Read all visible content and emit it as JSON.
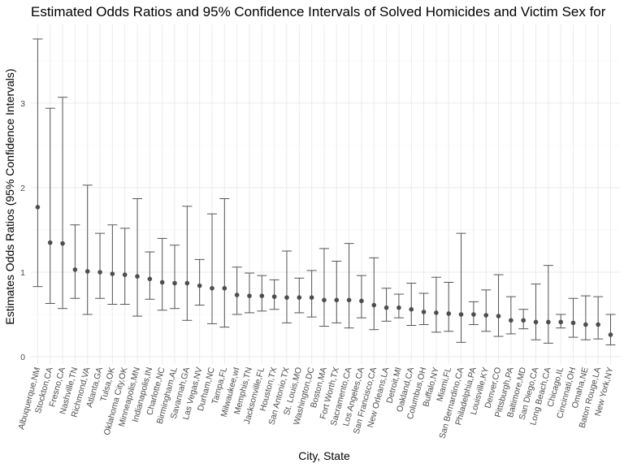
{
  "chart_data": {
    "type": "scatter",
    "title": "Estimated Odds Ratios and 95% Confidence Intervals of Solved Homicides and Victim Sex for",
    "xlabel": "City, State",
    "ylabel": "Estimates Odds Ratios (95% Confidence Intervals)",
    "ylim": [
      0,
      3.85
    ],
    "yticks": [
      "0",
      "1",
      "2",
      "3"
    ],
    "grid": true,
    "legend": "none",
    "point_color": "#4d4d4d",
    "errorbar_color": "#555555",
    "categories": [
      "Albuquerque,NM",
      "Stockton,CA",
      "Fresno,CA",
      "Nashville,TN",
      "Richmond,VA",
      "Atlanta,GA",
      "Tulsa,OK",
      "Oklahoma City,OK",
      "Minneapolis,MN",
      "Indianapolis,IN",
      "Charlotte,NC",
      "Birmingham,AL",
      "Savannah,GA",
      "Las Vegas,NV",
      "Durham,NC",
      "Tampa,FL",
      "Milwaukee,wI",
      "Memphis,TN",
      "Jacksonville,FL",
      "Houston,TX",
      "San Antonio,TX",
      "St. Louis,MO",
      "Washington,DC",
      "Boston,MA",
      "Fort Worth,TX",
      "Sacramento,CA",
      "Los Angeles,CA",
      "San Francisco,CA",
      "New Orleans,LA",
      "Detroit,MI",
      "Oakland,CA",
      "Columbus,OH",
      "Buffalo,NY",
      "Miami,FL",
      "San Bernardino,CA",
      "Philadelphia,PA",
      "Louisville,KY",
      "Denver,CO",
      "Pittsburgh,PA",
      "Baltimore,MD",
      "San Diego,CA",
      "Long Beach,CA",
      "Chicago,IL",
      "Cincinnati,OH",
      "Omaha,NE",
      "Baton Rouge,LA",
      "New York,NY"
    ],
    "estimate": [
      1.77,
      1.35,
      1.34,
      1.03,
      1.01,
      1.0,
      0.98,
      0.97,
      0.95,
      0.92,
      0.88,
      0.87,
      0.87,
      0.84,
      0.81,
      0.81,
      0.73,
      0.72,
      0.72,
      0.71,
      0.7,
      0.7,
      0.7,
      0.67,
      0.67,
      0.67,
      0.66,
      0.61,
      0.58,
      0.58,
      0.56,
      0.53,
      0.52,
      0.51,
      0.5,
      0.5,
      0.49,
      0.48,
      0.43,
      0.43,
      0.41,
      0.41,
      0.41,
      0.4,
      0.38,
      0.38,
      0.26
    ],
    "ci_low": [
      0.83,
      0.63,
      0.57,
      0.69,
      0.5,
      0.69,
      0.62,
      0.62,
      0.48,
      0.68,
      0.55,
      0.57,
      0.43,
      0.61,
      0.39,
      0.35,
      0.5,
      0.52,
      0.54,
      0.56,
      0.4,
      0.52,
      0.47,
      0.36,
      0.4,
      0.34,
      0.46,
      0.32,
      0.42,
      0.46,
      0.37,
      0.38,
      0.29,
      0.3,
      0.17,
      0.38,
      0.3,
      0.24,
      0.27,
      0.33,
      0.2,
      0.16,
      0.34,
      0.23,
      0.2,
      0.21,
      0.14
    ],
    "ci_high": [
      3.76,
      2.94,
      3.07,
      1.56,
      2.03,
      1.46,
      1.56,
      1.52,
      1.87,
      1.24,
      1.4,
      1.32,
      1.78,
      1.15,
      1.69,
      1.87,
      1.06,
      0.99,
      0.96,
      0.91,
      1.25,
      0.93,
      1.02,
      1.28,
      1.13,
      1.34,
      0.96,
      1.17,
      0.81,
      0.74,
      0.87,
      0.75,
      0.94,
      0.88,
      1.46,
      0.65,
      0.79,
      0.97,
      0.71,
      0.56,
      0.86,
      1.08,
      0.5,
      0.69,
      0.72,
      0.71,
      0.5
    ]
  }
}
